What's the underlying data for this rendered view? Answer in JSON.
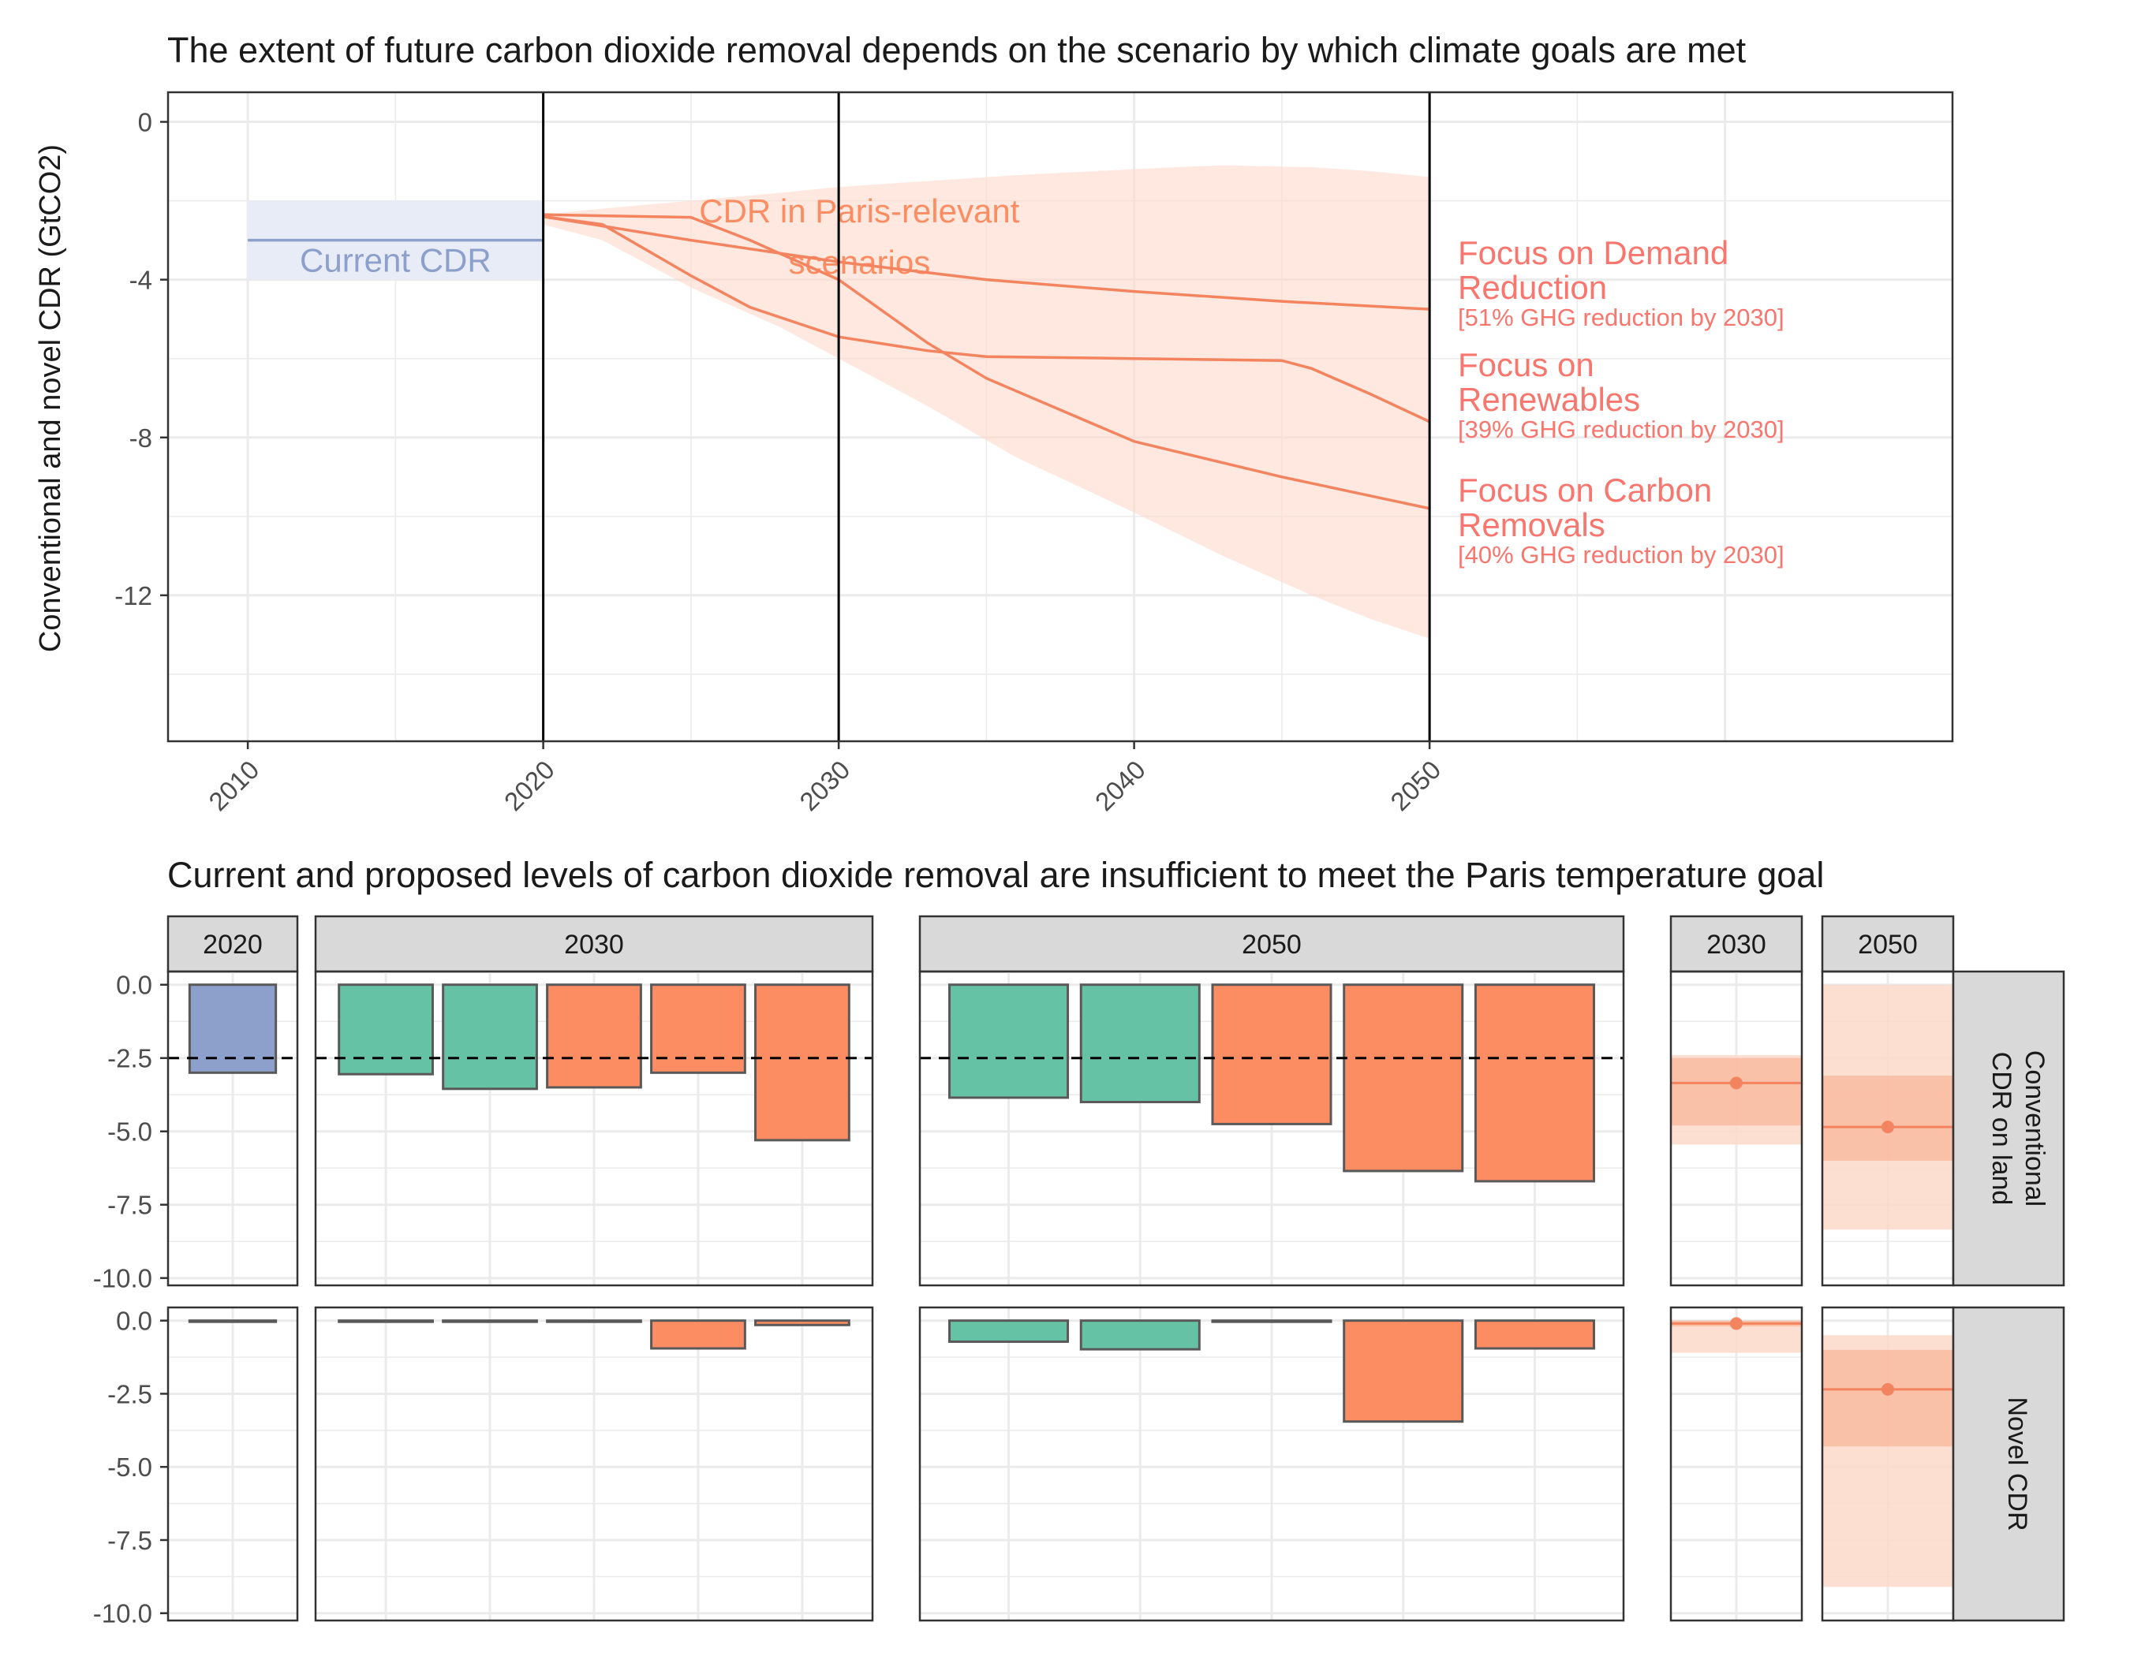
{
  "colors": {
    "orange": "#FC8D62",
    "orange_line": "#F4845F",
    "orange_light": "#FDD9C9",
    "orange_mid": "#F9AE8E",
    "salmon_text": "#F8766D",
    "green": "#66C2A5",
    "blue": "#8DA0CB",
    "blue_band": "#E8ECF6",
    "panel_strip": "#D9D9D9",
    "grid": "#EBEBEB"
  },
  "chart_data": [
    {
      "type": "line",
      "title": "The extent of future carbon dioxide removal depends on the scenario by which climate goals are met",
      "ylabel": "Conventional and novel CDR (GtCO2)",
      "xlabel": "",
      "xlim": [
        2007.3,
        2067.7
      ],
      "ylim": [
        -15.7,
        0.75
      ],
      "grid": true,
      "x_ticks": [
        2010,
        2020,
        2030,
        2040,
        2050
      ],
      "x_tick_labels": [
        "2010",
        "2020",
        "2030",
        "2040",
        "2050"
      ],
      "y_ticks": [
        0,
        -4,
        -8,
        -12
      ],
      "y_tick_labels": [
        "0",
        "-4",
        "-8",
        "-12"
      ],
      "vlines": [
        2020,
        2030,
        2050
      ],
      "current_cdr": {
        "label": "Current CDR",
        "x": [
          2010,
          2020
        ],
        "value": -3.0,
        "range": [
          -2.0,
          -4.0
        ]
      },
      "envelope": {
        "label": "CDR in Paris-relevant scenarios",
        "x": [
          2020,
          2022,
          2025,
          2028,
          2030,
          2033,
          2036,
          2040,
          2043,
          2046,
          2048,
          2050
        ],
        "upper": [
          -2.35,
          -2.2,
          -2.0,
          -1.8,
          -1.65,
          -1.5,
          -1.35,
          -1.2,
          -1.1,
          -1.15,
          -1.25,
          -1.4
        ],
        "lower": [
          -2.6,
          -3.0,
          -4.2,
          -5.2,
          -6.0,
          -7.2,
          -8.5,
          -9.9,
          -11.0,
          -12.0,
          -12.6,
          -13.1
        ]
      },
      "series": [
        {
          "name": "Focus on Demand Reduction",
          "note": "[51% GHG reduction by 2030]",
          "x": [
            2020,
            2025,
            2030,
            2035,
            2040,
            2045,
            2050
          ],
          "y": [
            -2.4,
            -3.0,
            -3.55,
            -4.0,
            -4.3,
            -4.55,
            -4.75
          ]
        },
        {
          "name": "Focus on Renewables",
          "note": "[39% GHG reduction by 2030]",
          "x": [
            2020,
            2022,
            2025,
            2027,
            2030,
            2033,
            2035,
            2040,
            2045,
            2046,
            2048,
            2050
          ],
          "y": [
            -2.4,
            -2.6,
            -3.9,
            -4.7,
            -5.45,
            -5.8,
            -5.95,
            -6.0,
            -6.05,
            -6.25,
            -6.9,
            -7.6
          ]
        },
        {
          "name": "Focus on Carbon Removals",
          "note": "[40% GHG reduction by 2030]",
          "x": [
            2020,
            2022,
            2025,
            2027,
            2030,
            2033,
            2035,
            2040,
            2045,
            2050
          ],
          "y": [
            -2.35,
            -2.38,
            -2.42,
            -3.0,
            -4.0,
            -5.6,
            -6.5,
            -8.1,
            -9.0,
            -9.8
          ]
        }
      ]
    },
    {
      "type": "bar",
      "title": "Current and proposed levels of carbon dioxide removal are insufficient to meet the Paris temperature goal",
      "ylim": [
        -10.25,
        0.45
      ],
      "y_ticks": [
        0.0,
        -2.5,
        -5.0,
        -7.5,
        -10.0
      ],
      "y_tick_labels": [
        "0.0",
        "-2.5",
        "-5.0",
        "-7.5",
        "-10.0"
      ],
      "reference_line": -2.5,
      "columns": [
        {
          "label": "2020",
          "bars": [
            {
              "value": -3.0,
              "color": "blue"
            }
          ]
        },
        {
          "label": "2030",
          "bars": [
            {
              "value": -3.05,
              "color": "green"
            },
            {
              "value": -3.55,
              "color": "green"
            },
            {
              "value": -3.5,
              "color": "orange"
            },
            {
              "value": -3.0,
              "color": "orange"
            },
            {
              "value": -5.3,
              "color": "orange"
            }
          ]
        },
        {
          "label": "2050",
          "bars": [
            {
              "value": -3.85,
              "color": "green"
            },
            {
              "value": -4.0,
              "color": "green"
            },
            {
              "value": -4.75,
              "color": "orange"
            },
            {
              "value": -6.35,
              "color": "orange"
            },
            {
              "value": -6.7,
              "color": "orange"
            }
          ]
        }
      ],
      "rows": [
        {
          "label": "Conventional CDR on land",
          "values": [
            [
              -3.0
            ],
            [
              -3.05,
              -3.55,
              -3.5,
              -3.0,
              -5.3
            ],
            [
              -3.85,
              -4.0,
              -4.75,
              -6.35,
              -6.7
            ]
          ],
          "ranges": [
            {
              "label": "2030",
              "median": -3.35,
              "inner": [
                -2.5,
                -4.8
              ],
              "outer": [
                -2.4,
                -5.45
              ]
            },
            {
              "label": "2050",
              "median": -4.85,
              "inner": [
                -3.1,
                -6.0
              ],
              "outer": [
                0.0,
                -8.35
              ]
            }
          ]
        },
        {
          "label": "Novel CDR",
          "values": [
            [
              0.0
            ],
            [
              -0.04,
              -0.04,
              -0.04,
              -0.95,
              -0.15
            ],
            [
              -0.72,
              -0.98,
              -0.04,
              -3.45,
              -0.95
            ]
          ],
          "ranges": [
            {
              "label": "2030",
              "median": -0.1,
              "inner": [
                0.0,
                -0.2
              ],
              "outer": [
                0.0,
                -1.1
              ]
            },
            {
              "label": "2050",
              "median": -2.35,
              "inner": [
                -1.0,
                -4.3
              ],
              "outer": [
                -0.5,
                -9.1
              ]
            }
          ]
        }
      ]
    }
  ]
}
